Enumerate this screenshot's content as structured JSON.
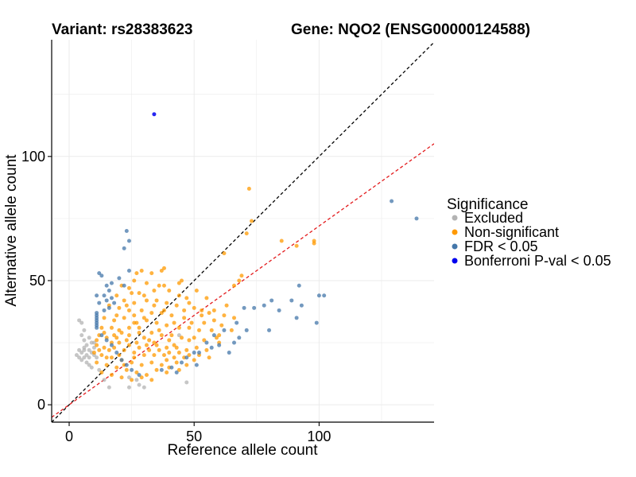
{
  "chart_data": {
    "type": "scatter",
    "title_left": "Variant: rs28383623",
    "title_right": "Gene: NQO2 (ENSG00000124588)",
    "xlabel": "Reference allele count",
    "ylabel": "Alternative allele count",
    "xlim": [
      -7,
      146
    ],
    "ylim": [
      -7,
      147
    ],
    "xticks": [
      0,
      50,
      100
    ],
    "yticks": [
      0,
      50,
      100
    ],
    "grid": true,
    "reference_lines": [
      {
        "name": "identity",
        "slope": 1,
        "intercept": 0,
        "color": "#000000",
        "style": "dashed"
      },
      {
        "name": "ratio",
        "slope": 0.72,
        "intercept": 0,
        "color": "#e31a1c",
        "style": "dashed"
      }
    ],
    "legend": {
      "title": "Significance",
      "position": "right",
      "entries": [
        {
          "label": "Excluded",
          "color": "#b3b3b3"
        },
        {
          "label": "Non-significant",
          "color": "#ff9900"
        },
        {
          "label": "FDR < 0.05",
          "color": "#4477aa"
        },
        {
          "label": "Bonferroni P-val < 0.05",
          "color": "#0000ee"
        }
      ]
    },
    "series": [
      {
        "name": "Excluded",
        "color": "#b3b3b3",
        "points": [
          [
            4,
            34
          ],
          [
            5,
            33
          ],
          [
            6,
            30
          ],
          [
            5,
            28
          ],
          [
            6,
            26
          ],
          [
            7,
            24
          ],
          [
            8,
            22
          ],
          [
            3,
            20
          ],
          [
            4,
            19
          ],
          [
            5,
            18
          ],
          [
            6,
            19
          ],
          [
            7,
            17
          ],
          [
            8,
            16
          ],
          [
            9,
            15
          ],
          [
            4,
            22
          ],
          [
            5,
            21
          ],
          [
            6,
            22
          ],
          [
            7,
            20
          ],
          [
            8,
            19
          ],
          [
            9,
            21
          ],
          [
            10,
            20
          ],
          [
            11,
            19
          ],
          [
            8,
            27
          ],
          [
            10,
            25
          ],
          [
            12,
            14
          ],
          [
            14,
            10
          ],
          [
            16,
            7
          ],
          [
            24,
            11
          ],
          [
            24,
            7
          ],
          [
            27,
            10
          ],
          [
            28,
            8
          ],
          [
            30,
            7
          ],
          [
            47,
            9
          ],
          [
            44,
            28
          ],
          [
            6,
            23
          ],
          [
            9,
            25
          ],
          [
            10,
            23
          ]
        ]
      },
      {
        "name": "Non-significant",
        "color": "#ff9900",
        "points": [
          [
            72,
            87
          ],
          [
            85,
            66
          ],
          [
            98,
            65
          ],
          [
            98,
            66
          ],
          [
            91,
            64
          ],
          [
            62,
            61
          ],
          [
            73,
            74
          ],
          [
            71,
            69
          ],
          [
            69,
            52
          ],
          [
            68,
            50
          ],
          [
            66,
            48
          ],
          [
            38,
            55
          ],
          [
            37,
            54
          ],
          [
            29,
            54
          ],
          [
            27,
            53
          ],
          [
            33,
            53
          ],
          [
            26,
            50
          ],
          [
            31,
            49
          ],
          [
            38,
            48
          ],
          [
            45,
            50
          ],
          [
            24,
            47
          ],
          [
            21,
            48
          ],
          [
            19,
            44
          ],
          [
            28,
            45
          ],
          [
            34,
            46
          ],
          [
            40,
            46
          ],
          [
            44,
            44
          ],
          [
            47,
            43
          ],
          [
            51,
            46
          ],
          [
            55,
            43
          ],
          [
            22,
            42
          ],
          [
            26,
            41
          ],
          [
            31,
            42
          ],
          [
            35,
            42
          ],
          [
            39,
            41
          ],
          [
            43,
            40
          ],
          [
            50,
            39
          ],
          [
            53,
            38
          ],
          [
            58,
            38
          ],
          [
            62,
            36
          ],
          [
            16,
            40
          ],
          [
            20,
            39
          ],
          [
            24,
            38
          ],
          [
            29,
            38
          ],
          [
            33,
            37
          ],
          [
            37,
            37
          ],
          [
            41,
            36
          ],
          [
            46,
            35
          ],
          [
            49,
            33
          ],
          [
            53,
            36
          ],
          [
            14,
            35
          ],
          [
            18,
            34
          ],
          [
            22,
            35
          ],
          [
            26,
            33
          ],
          [
            31,
            34
          ],
          [
            35,
            33
          ],
          [
            39,
            32
          ],
          [
            44,
            31
          ],
          [
            48,
            31
          ],
          [
            57,
            30
          ],
          [
            61,
            32
          ],
          [
            13,
            31
          ],
          [
            17,
            31
          ],
          [
            20,
            30
          ],
          [
            24,
            31
          ],
          [
            28,
            29
          ],
          [
            33,
            29
          ],
          [
            37,
            28
          ],
          [
            41,
            28
          ],
          [
            45,
            27
          ],
          [
            50,
            27
          ],
          [
            54,
            26
          ],
          [
            59,
            27
          ],
          [
            12,
            28
          ],
          [
            15,
            27
          ],
          [
            19,
            27
          ],
          [
            23,
            26
          ],
          [
            27,
            25
          ],
          [
            31,
            24
          ],
          [
            35,
            24
          ],
          [
            39,
            23
          ],
          [
            43,
            23
          ],
          [
            47,
            22
          ],
          [
            51,
            23
          ],
          [
            55,
            22
          ],
          [
            11,
            24
          ],
          [
            14,
            23
          ],
          [
            18,
            23
          ],
          [
            22,
            22
          ],
          [
            26,
            21
          ],
          [
            30,
            20
          ],
          [
            34,
            20
          ],
          [
            38,
            20
          ],
          [
            42,
            19
          ],
          [
            46,
            19
          ],
          [
            50,
            18
          ],
          [
            10,
            21
          ],
          [
            13,
            20
          ],
          [
            17,
            19
          ],
          [
            21,
            18
          ],
          [
            25,
            17
          ],
          [
            29,
            16
          ],
          [
            33,
            17
          ],
          [
            37,
            16
          ],
          [
            40,
            15
          ],
          [
            44,
            14
          ],
          [
            11,
            17
          ],
          [
            15,
            16
          ],
          [
            19,
            15
          ],
          [
            23,
            14
          ],
          [
            27,
            13
          ],
          [
            31,
            12
          ],
          [
            35,
            14
          ],
          [
            39,
            13
          ],
          [
            13,
            13
          ],
          [
            17,
            12
          ],
          [
            21,
            11
          ],
          [
            25,
            10
          ],
          [
            29,
            11
          ],
          [
            33,
            10
          ],
          [
            20,
            25
          ],
          [
            24,
            24
          ],
          [
            28,
            23
          ],
          [
            32,
            22
          ],
          [
            36,
            22
          ],
          [
            40,
            21
          ],
          [
            44,
            21
          ],
          [
            48,
            20
          ],
          [
            52,
            20
          ],
          [
            56,
            19
          ],
          [
            16,
            22
          ],
          [
            24,
            28
          ],
          [
            32,
            26
          ],
          [
            36,
            30
          ],
          [
            40,
            26
          ],
          [
            28,
            31
          ],
          [
            18,
            28
          ],
          [
            30,
            35
          ],
          [
            42,
            33
          ],
          [
            46,
            38
          ],
          [
            34,
            40
          ],
          [
            38,
            38
          ],
          [
            26,
            36
          ],
          [
            48,
            26
          ],
          [
            52,
            30
          ],
          [
            58,
            34
          ],
          [
            60,
            28
          ],
          [
            20,
            20
          ],
          [
            22,
            16
          ],
          [
            26,
            19
          ],
          [
            30,
            27
          ],
          [
            34,
            25
          ],
          [
            42,
            24
          ],
          [
            12,
            22
          ],
          [
            15,
            19
          ],
          [
            36,
            48
          ],
          [
            30,
            44
          ],
          [
            27,
            33
          ],
          [
            21,
            29
          ],
          [
            39,
            18
          ],
          [
            43,
            17
          ],
          [
            47,
            16
          ],
          [
            11,
            26
          ],
          [
            14,
            29
          ],
          [
            17,
            25
          ],
          [
            44,
            49
          ],
          [
            48,
            41
          ],
          [
            54,
            33
          ],
          [
            56,
            37
          ],
          [
            23,
            40
          ],
          [
            19,
            36
          ],
          [
            25,
            45
          ],
          [
            63,
            40
          ],
          [
            66,
            35
          ],
          [
            60,
            25
          ],
          [
            65,
            30
          ]
        ]
      },
      {
        "name": "FDR < 0.05",
        "color": "#4477aa",
        "points": [
          [
            129,
            82
          ],
          [
            139,
            75
          ],
          [
            23,
            70
          ],
          [
            24,
            66
          ],
          [
            22,
            63
          ],
          [
            24,
            54
          ],
          [
            20,
            51
          ],
          [
            12,
            53
          ],
          [
            13,
            52
          ],
          [
            17,
            49
          ],
          [
            15,
            48
          ],
          [
            22,
            48
          ],
          [
            16,
            46
          ],
          [
            11,
            44
          ],
          [
            14,
            44
          ],
          [
            17,
            43
          ],
          [
            15,
            42
          ],
          [
            12,
            41
          ],
          [
            18,
            41
          ],
          [
            16,
            39
          ],
          [
            14,
            38
          ],
          [
            11,
            37
          ],
          [
            11,
            36
          ],
          [
            11,
            35
          ],
          [
            11,
            34
          ],
          [
            11,
            33
          ],
          [
            11,
            32
          ],
          [
            11,
            31
          ],
          [
            13,
            28
          ],
          [
            15,
            26
          ],
          [
            17,
            24
          ],
          [
            19,
            21
          ],
          [
            21,
            18
          ],
          [
            23,
            16
          ],
          [
            25,
            14
          ],
          [
            28,
            12
          ],
          [
            92,
            48
          ],
          [
            100,
            44
          ],
          [
            102,
            44
          ],
          [
            89,
            42
          ],
          [
            81,
            42
          ],
          [
            78,
            40
          ],
          [
            93,
            40
          ],
          [
            84,
            38
          ],
          [
            74,
            39
          ],
          [
            70,
            39
          ],
          [
            91,
            35
          ],
          [
            99,
            33
          ],
          [
            80,
            30
          ],
          [
            71,
            30
          ],
          [
            67,
            33
          ],
          [
            62,
            30
          ],
          [
            58,
            28
          ],
          [
            66,
            25
          ],
          [
            64,
            21
          ],
          [
            60,
            24
          ],
          [
            55,
            25
          ],
          [
            52,
            21
          ],
          [
            50,
            21
          ],
          [
            47,
            19
          ],
          [
            45,
            17
          ],
          [
            51,
            16
          ],
          [
            41,
            15
          ],
          [
            37,
            14
          ],
          [
            43,
            13
          ],
          [
            57,
            23
          ],
          [
            68,
            27
          ]
        ]
      },
      {
        "name": "Bonferroni P-val < 0.05",
        "color": "#0000ee",
        "points": [
          [
            34,
            117
          ]
        ]
      }
    ]
  }
}
